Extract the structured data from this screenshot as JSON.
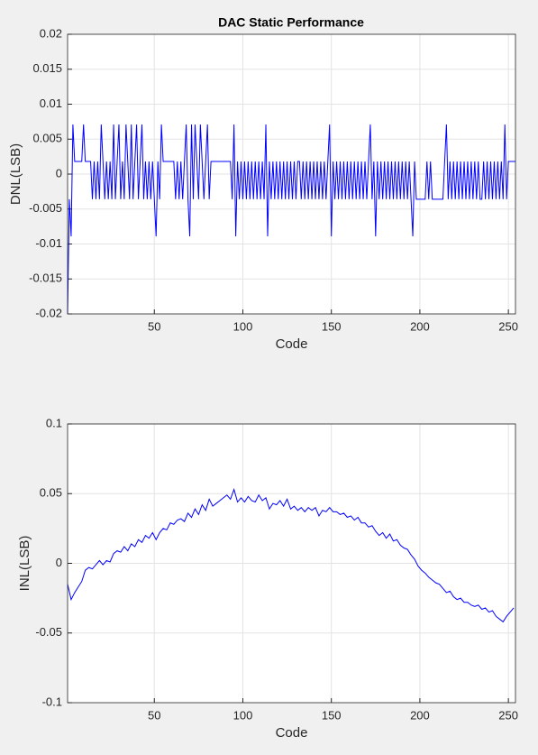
{
  "chart_data": [
    {
      "type": "line",
      "title": "DAC Static Performance",
      "xlabel": "Code",
      "ylabel": "DNL(LSB)",
      "xlim": [
        1,
        254
      ],
      "xticks": [
        50,
        100,
        150,
        200,
        250
      ],
      "ylim": [
        -0.02,
        0.02
      ],
      "yticks": [
        -0.02,
        -0.015,
        -0.01,
        -0.005,
        0,
        0.005,
        0.01,
        0.015,
        0.02
      ],
      "grid": true,
      "series": [
        {
          "color": "#0000ff",
          "x": [
            1,
            2,
            3,
            4,
            5,
            6,
            7,
            8,
            9,
            10,
            11,
            12,
            13,
            14,
            15,
            16,
            17,
            18,
            19,
            20,
            21,
            22,
            23,
            24,
            25,
            26,
            27,
            28,
            29,
            30,
            31,
            32,
            33,
            34,
            35,
            36,
            37,
            38,
            39,
            40,
            41,
            42,
            43,
            44,
            45,
            46,
            47,
            48,
            49,
            50,
            51,
            52,
            53,
            54,
            55,
            56,
            57,
            58,
            59,
            60,
            61,
            62,
            63,
            64,
            65,
            66,
            67,
            68,
            69,
            70,
            71,
            72,
            73,
            74,
            75,
            76,
            77,
            78,
            79,
            80,
            81,
            82,
            83,
            84,
            85,
            86,
            87,
            88,
            89,
            90,
            91,
            92,
            93,
            94,
            95,
            96,
            97,
            98,
            99,
            100,
            101,
            102,
            103,
            104,
            105,
            106,
            107,
            108,
            109,
            110,
            111,
            112,
            113,
            114,
            115,
            116,
            117,
            118,
            119,
            120,
            121,
            122,
            123,
            124,
            125,
            126,
            127,
            128,
            129,
            130,
            131,
            132,
            133,
            134,
            135,
            136,
            137,
            138,
            139,
            140,
            141,
            142,
            143,
            144,
            145,
            146,
            147,
            148,
            149,
            150,
            151,
            152,
            153,
            154,
            155,
            156,
            157,
            158,
            159,
            160,
            161,
            162,
            163,
            164,
            165,
            166,
            167,
            168,
            169,
            170,
            171,
            172,
            173,
            174,
            175,
            176,
            177,
            178,
            179,
            180,
            181,
            182,
            183,
            184,
            185,
            186,
            187,
            188,
            189,
            190,
            191,
            192,
            193,
            194,
            195,
            196,
            197,
            198,
            199,
            200,
            201,
            202,
            203,
            204,
            205,
            206,
            207,
            208,
            209,
            210,
            211,
            212,
            213,
            214,
            215,
            216,
            217,
            218,
            219,
            220,
            221,
            222,
            223,
            224,
            225,
            226,
            227,
            228,
            229,
            230,
            231,
            232,
            233,
            234,
            235,
            236,
            237,
            238,
            239,
            240,
            241,
            242,
            243,
            244,
            245,
            246,
            247,
            248,
            249,
            250,
            251,
            252,
            253,
            254
          ],
          "values": [
            -0.02,
            -0.0036,
            -0.0089,
            0.0071,
            0.0018,
            0.0018,
            0.0018,
            0.0018,
            0.0018,
            0.0071,
            0.0018,
            0.0018,
            0.0018,
            0.0018,
            -0.0036,
            0.0018,
            -0.0036,
            0.0018,
            -0.0036,
            0.0071,
            0.0018,
            -0.0036,
            0.0018,
            -0.0036,
            0.0018,
            -0.0036,
            0.0071,
            -0.0036,
            0.0018,
            0.0071,
            -0.0036,
            0.0018,
            -0.0036,
            0.0071,
            0.0018,
            -0.0036,
            0.0071,
            -0.0036,
            0.0018,
            0.0071,
            -0.0036,
            0.0018,
            0.0071,
            -0.0036,
            0.0018,
            -0.0036,
            0.0018,
            -0.0036,
            0.0018,
            -0.0036,
            -0.0089,
            0.0018,
            -0.0036,
            0.0071,
            0.0018,
            0.0018,
            0.0018,
            0.0018,
            0.0018,
            0.0018,
            0.0018,
            -0.0036,
            0.0018,
            -0.0036,
            0.0018,
            -0.0036,
            0.0018,
            0.0071,
            -0.0036,
            -0.0089,
            0.0071,
            -0.0036,
            0.0071,
            0.0018,
            -0.0036,
            0.0071,
            0.0018,
            -0.0036,
            0.0018,
            0.0071,
            -0.0036,
            0.0018,
            0.0018,
            0.0018,
            0.0018,
            0.0018,
            0.0018,
            0.0018,
            0.0018,
            0.0018,
            0.0018,
            0.0018,
            0.0018,
            -0.0036,
            0.0071,
            -0.0089,
            0.0018,
            -0.0036,
            0.0018,
            -0.0036,
            0.0018,
            -0.0036,
            0.0018,
            -0.0036,
            0.0018,
            -0.0036,
            0.0018,
            -0.0036,
            0.0018,
            -0.0036,
            0.0018,
            -0.0036,
            0.0071,
            -0.0089,
            0.0018,
            -0.0036,
            0.0018,
            -0.0036,
            0.0018,
            -0.0036,
            0.0018,
            -0.0036,
            0.0018,
            -0.0036,
            0.0018,
            -0.0036,
            0.0018,
            -0.0036,
            0.0018,
            -0.0036,
            0.0018,
            0.0018,
            -0.0036,
            0.0018,
            -0.0036,
            0.0018,
            -0.0036,
            0.0018,
            -0.0036,
            0.0018,
            -0.0036,
            0.0018,
            -0.0036,
            0.0018,
            -0.0036,
            0.0018,
            -0.0036,
            0.0018,
            0.0071,
            -0.0089,
            0.0018,
            -0.0036,
            0.0018,
            -0.0036,
            0.0018,
            -0.0036,
            0.0018,
            -0.0036,
            0.0018,
            -0.0036,
            0.0018,
            -0.0036,
            0.0018,
            -0.0036,
            0.0018,
            -0.0036,
            0.0018,
            -0.0036,
            0.0018,
            -0.0036,
            0.0018,
            0.0071,
            -0.0036,
            0.0018,
            -0.0089,
            0.0018,
            -0.0036,
            0.0018,
            -0.0036,
            0.0018,
            -0.0036,
            0.0018,
            -0.0036,
            0.0018,
            -0.0036,
            0.0018,
            -0.0036,
            0.0018,
            -0.0036,
            0.0018,
            -0.0036,
            0.0018,
            -0.0036,
            0.0018,
            -0.0036,
            -0.0089,
            0.0018,
            -0.0036,
            -0.0036,
            -0.0036,
            -0.0036,
            -0.0036,
            -0.0036,
            0.0018,
            -0.0036,
            0.0018,
            -0.0036,
            -0.0036,
            -0.0036,
            -0.0036,
            -0.0036,
            -0.0036,
            -0.0036,
            0.0018,
            0.0071,
            -0.0036,
            0.0018,
            -0.0036,
            0.0018,
            -0.0036,
            0.0018,
            -0.0036,
            0.0018,
            -0.0036,
            0.0018,
            -0.0036,
            0.0018,
            -0.0036,
            0.0018,
            -0.0036,
            0.0018,
            -0.0036,
            0.0018,
            -0.0036,
            -0.0036,
            0.0018,
            -0.0036,
            0.0018,
            -0.0036,
            0.0018,
            -0.0036,
            0.0018,
            -0.0036,
            0.0018,
            -0.0036,
            0.0018,
            -0.0036,
            0.0071,
            -0.0036,
            0.0018,
            0.0018,
            0.0018,
            0.0018,
            0.0018
          ]
        }
      ]
    },
    {
      "type": "line",
      "xlabel": "Code",
      "ylabel": "INL(LSB)",
      "xlim": [
        1,
        254
      ],
      "xticks": [
        50,
        100,
        150,
        200,
        250
      ],
      "ylim": [
        -0.1,
        0.1
      ],
      "yticks": [
        -0.1,
        -0.05,
        0,
        0.05,
        0.1
      ],
      "grid": true,
      "series": [
        {
          "color": "#0000ff",
          "x": [
            1,
            3,
            5,
            7,
            9,
            11,
            13,
            15,
            17,
            19,
            21,
            23,
            25,
            27,
            29,
            31,
            33,
            35,
            37,
            39,
            41,
            43,
            45,
            47,
            49,
            51,
            53,
            55,
            57,
            59,
            61,
            63,
            65,
            67,
            69,
            71,
            73,
            75,
            77,
            79,
            81,
            83,
            85,
            87,
            89,
            91,
            93,
            95,
            97,
            99,
            101,
            103,
            105,
            107,
            109,
            111,
            113,
            115,
            117,
            119,
            121,
            123,
            125,
            127,
            129,
            131,
            133,
            135,
            137,
            139,
            141,
            143,
            145,
            147,
            149,
            151,
            153,
            155,
            157,
            159,
            161,
            163,
            165,
            167,
            169,
            171,
            173,
            175,
            177,
            179,
            181,
            183,
            185,
            187,
            189,
            191,
            193,
            195,
            197,
            199,
            201,
            203,
            205,
            207,
            209,
            211,
            213,
            215,
            217,
            219,
            221,
            223,
            225,
            227,
            229,
            231,
            233,
            235,
            237,
            239,
            241,
            243,
            245,
            247,
            249,
            251,
            253
          ],
          "values": [
            -0.015,
            -0.026,
            -0.021,
            -0.017,
            -0.013,
            -0.005,
            -0.003,
            -0.004,
            -0.001,
            0.002,
            -0.001,
            0.002,
            0.001,
            0.007,
            0.009,
            0.008,
            0.012,
            0.009,
            0.014,
            0.012,
            0.017,
            0.015,
            0.02,
            0.018,
            0.022,
            0.017,
            0.022,
            0.025,
            0.024,
            0.029,
            0.028,
            0.031,
            0.032,
            0.03,
            0.036,
            0.033,
            0.039,
            0.035,
            0.042,
            0.038,
            0.046,
            0.041,
            0.043,
            0.045,
            0.047,
            0.049,
            0.046,
            0.053,
            0.044,
            0.047,
            0.044,
            0.048,
            0.045,
            0.044,
            0.049,
            0.045,
            0.047,
            0.039,
            0.043,
            0.042,
            0.045,
            0.041,
            0.046,
            0.039,
            0.041,
            0.038,
            0.04,
            0.037,
            0.04,
            0.038,
            0.04,
            0.034,
            0.038,
            0.037,
            0.04,
            0.037,
            0.037,
            0.035,
            0.036,
            0.033,
            0.034,
            0.031,
            0.033,
            0.029,
            0.029,
            0.026,
            0.027,
            0.023,
            0.02,
            0.022,
            0.018,
            0.021,
            0.016,
            0.017,
            0.013,
            0.011,
            0.01,
            0.006,
            0.003,
            -0.002,
            -0.005,
            -0.007,
            -0.01,
            -0.012,
            -0.014,
            -0.015,
            -0.018,
            -0.021,
            -0.02,
            -0.024,
            -0.026,
            -0.025,
            -0.028,
            -0.028,
            -0.03,
            -0.031,
            -0.03,
            -0.033,
            -0.032,
            -0.035,
            -0.034,
            -0.038,
            -0.04,
            -0.042,
            -0.038,
            -0.035,
            -0.032
          ]
        }
      ]
    }
  ]
}
